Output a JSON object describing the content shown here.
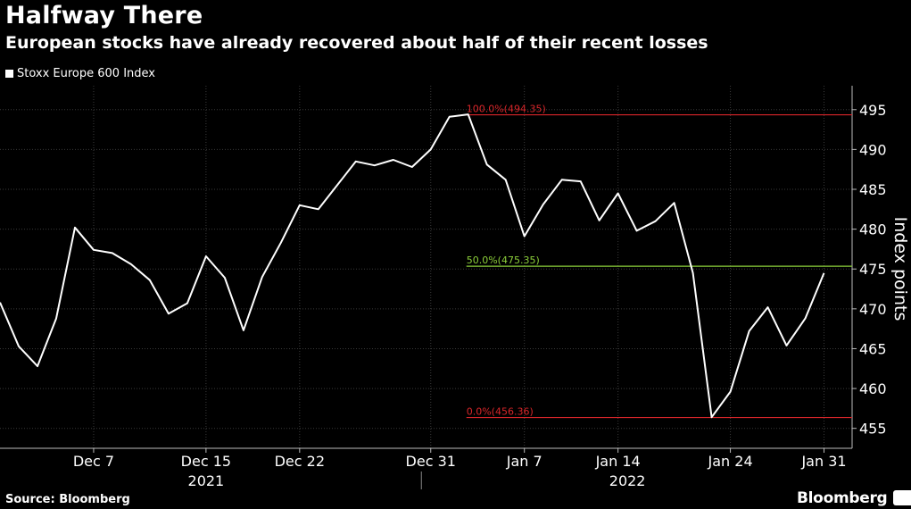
{
  "title": "Halfway There",
  "subtitle": "European stocks have already recovered about half of their recent losses",
  "legend_label": "Stoxx Europe 600 Index",
  "source": "Source: Bloomberg",
  "brand": "Bloomberg",
  "colors": {
    "background": "#000000",
    "line": "#ffffff",
    "grid": "#3a3a3a",
    "red_line": "#d9262a",
    "green_line": "#8ccf3a"
  },
  "chart_data": {
    "type": "line",
    "title": "Halfway There",
    "ylabel": "Index points",
    "ylim": [
      452.5,
      498
    ],
    "y_ticks": [
      455,
      460,
      465,
      470,
      475,
      480,
      485,
      490,
      495
    ],
    "x_ticks": [
      {
        "label": "Dec 7",
        "day": 5
      },
      {
        "label": "Dec 15",
        "day": 11
      },
      {
        "label": "Dec 22",
        "day": 16
      },
      {
        "label": "Dec 31",
        "day": 23
      },
      {
        "label": "Jan 7",
        "day": 28
      },
      {
        "label": "Jan 14",
        "day": 33
      },
      {
        "label": "Jan 24",
        "day": 39
      },
      {
        "label": "Jan 31",
        "day": 44
      }
    ],
    "x_range": [
      0,
      45.5
    ],
    "year_labels": [
      {
        "label": "2021",
        "day": 11
      },
      {
        "label": "2022",
        "day": 33.5
      }
    ],
    "year_divider_day": 22.5,
    "series": [
      {
        "name": "Stoxx Europe 600 Index",
        "x": [
          0,
          1,
          2,
          3,
          4,
          5,
          6,
          7,
          8,
          9,
          10,
          11,
          12,
          13,
          14,
          15,
          16,
          17,
          18,
          19,
          20,
          21,
          22,
          23,
          24,
          25,
          26,
          27,
          28,
          29,
          30,
          31,
          32,
          33,
          34,
          35,
          36,
          37,
          38,
          39,
          40,
          41,
          42,
          43,
          44
        ],
        "values": [
          470.8,
          465.3,
          462.8,
          468.8,
          480.2,
          477.4,
          477.0,
          475.6,
          473.6,
          469.4,
          470.7,
          476.6,
          473.9,
          467.3,
          474.0,
          478.3,
          483.0,
          482.5,
          485.5,
          488.5,
          488.0,
          488.7,
          487.8,
          490.0,
          494.1,
          494.4,
          488.1,
          486.2,
          479.1,
          483.1,
          486.2,
          486.0,
          481.1,
          484.5,
          479.8,
          481.0,
          483.3,
          474.5,
          456.4,
          459.6,
          467.2,
          470.2,
          465.4,
          468.8,
          474.5
        ]
      }
    ],
    "annotations": [
      {
        "label": "100.0%(494.35)",
        "value": 494.35,
        "color": "red",
        "start_day": 25
      },
      {
        "label": "50.0%(475.35)",
        "value": 475.35,
        "color": "green",
        "start_day": 25
      },
      {
        "label": "0.0%(456.36)",
        "value": 456.36,
        "color": "red",
        "start_day": 25
      }
    ]
  }
}
